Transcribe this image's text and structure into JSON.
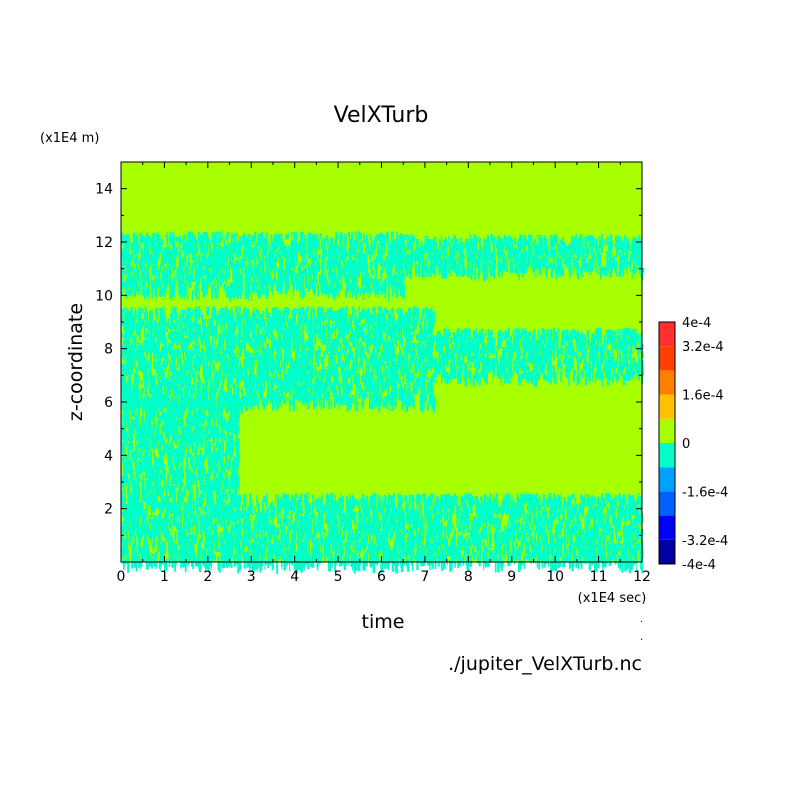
{
  "chart_data": {
    "type": "heatmap",
    "title": "VelXTurb",
    "xlabel": "time",
    "ylabel": "z-coordinate",
    "x_units": "(x1E4 sec)",
    "y_units": "(x1E4 m)",
    "source_label": "./jupiter_VelXTurb.nc",
    "xlim": [
      0,
      12
    ],
    "ylim": [
      0,
      15
    ],
    "x_ticks": [
      "0",
      "1",
      "2",
      "3",
      "4",
      "5",
      "6",
      "7",
      "8",
      "9",
      "10",
      "11",
      "12"
    ],
    "y_ticks": [
      "2",
      "4",
      "6",
      "8",
      "10",
      "12",
      "14"
    ],
    "background_level": 0,
    "background_color": "#a8ff00",
    "turbulence_color": "#00ffc8",
    "turbulent_regions": [
      {
        "x_start": 0,
        "x_end": 12,
        "z_bottom": 0,
        "z_top": 2.6,
        "value": -8e-05
      },
      {
        "x_start": 0,
        "x_end": 2.7,
        "z_bottom": 2.6,
        "z_top": 6.2,
        "value": -8e-05
      },
      {
        "x_start": 0,
        "x_end": 7.2,
        "z_bottom": 6.0,
        "z_top": 9.6,
        "value": -8e-05
      },
      {
        "x_start": 7.2,
        "x_end": 12,
        "z_bottom": 7.0,
        "z_top": 8.8,
        "value": -8e-05
      },
      {
        "x_start": 0,
        "x_end": 6.5,
        "z_bottom": 10.2,
        "z_top": 12.4,
        "value": -8e-05
      },
      {
        "x_start": 6.5,
        "x_end": 12,
        "z_bottom": 11.0,
        "z_top": 12.3,
        "value": -8e-05
      }
    ],
    "colorbar": {
      "tick_labels": [
        "4e-4",
        "3.2e-4",
        "1.6e-4",
        "0",
        "-1.6e-4",
        "-3.2e-4",
        "-4e-4"
      ],
      "tick_values": [
        0.0004,
        0.00032,
        0.00016,
        0,
        -0.00016,
        -0.00032,
        -0.0004
      ],
      "levels": [
        -0.0004,
        -0.00032,
        -0.00024,
        -0.00016,
        -8e-05,
        0,
        8e-05,
        0.00016,
        0.00024,
        0.00032,
        0.0004
      ],
      "colors": [
        "#0000a0",
        "#0000ff",
        "#0060ff",
        "#00a0ff",
        "#00ffc8",
        "#a8ff00",
        "#ffc000",
        "#ff8000",
        "#ff4000",
        "#ff3030"
      ]
    }
  }
}
